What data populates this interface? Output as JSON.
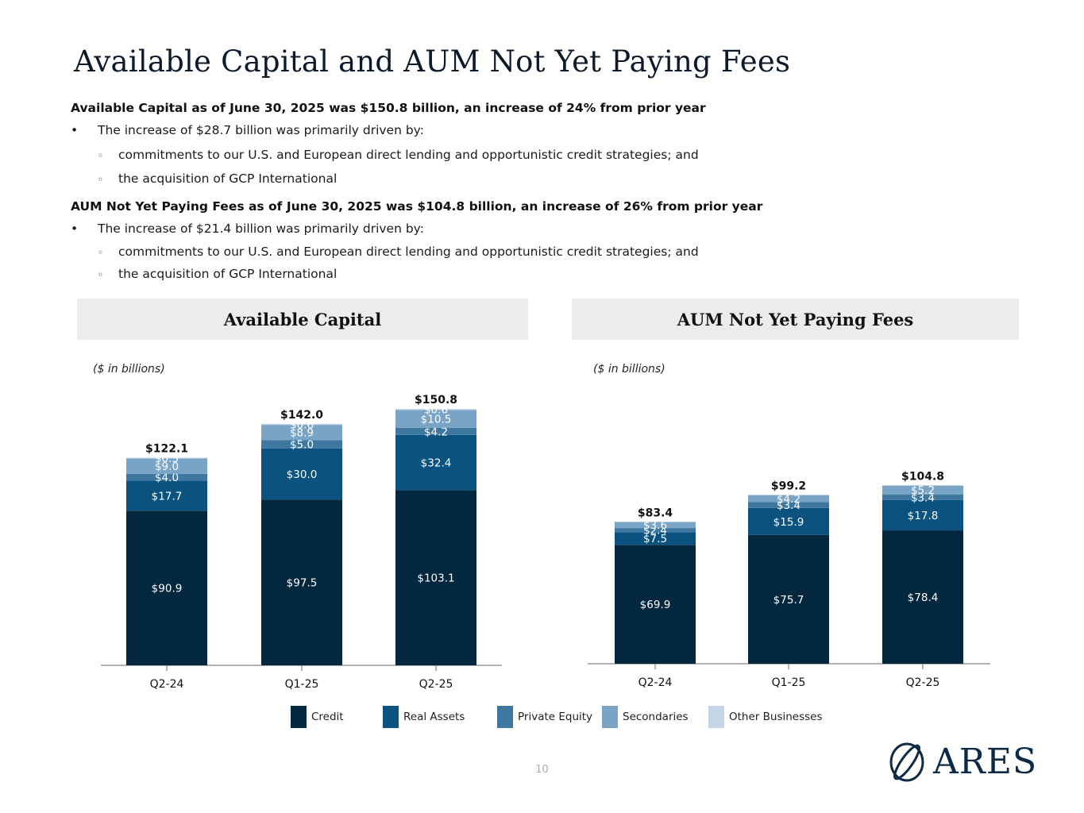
{
  "title": "Available Capital and AUM Not Yet Paying Fees",
  "commentary": {
    "heading1": "Available Capital as of June 30, 2025 was $150.8 billion, an increase of 24% from prior year",
    "bullet1": "The increase of $28.7 billion was primarily driven by:",
    "bullet1_subs": [
      "commitments to our U.S. and European direct lending and opportunistic credit strategies; and",
      "the acquisition of GCP International"
    ],
    "heading2": "AUM Not Yet Paying Fees as of June 30, 2025 was $104.8 billion, an increase of 26% from prior year",
    "bullet2": "The increase of $21.4 billion was primarily driven by:",
    "bullet2_subs": [
      "commitments to our U.S. and European direct lending and opportunistic credit strategies;  and",
      "the acquisition of GCP International"
    ],
    "bullet_marker": "•",
    "sub_marker": "◦"
  },
  "panels": {
    "left_title": "Available Capital",
    "right_title": "AUM Not Yet Paying Fees",
    "units": "($ in billions)"
  },
  "series_colors": {
    "Credit": "#03273f",
    "Real Assets": "#0a5381",
    "Private Equity": "#3e78a1",
    "Secondaries": "#7aa4c6",
    "Other Businesses": "#c4d5e5"
  },
  "chart_data": [
    {
      "type": "bar",
      "stacked": true,
      "title": "Available Capital",
      "ylabel": "($ in billions)",
      "categories": [
        "Q2-24",
        "Q1-25",
        "Q2-25"
      ],
      "series": [
        {
          "name": "Credit",
          "values": [
            90.9,
            97.5,
            103.1
          ],
          "labels": [
            "$90.9",
            "$97.5",
            "$103.1"
          ]
        },
        {
          "name": "Real Assets",
          "values": [
            17.7,
            30.0,
            32.4
          ],
          "labels": [
            "$17.7",
            "$30.0",
            "$32.4"
          ]
        },
        {
          "name": "Private Equity",
          "values": [
            4.0,
            5.0,
            4.2
          ],
          "labels": [
            "$4.0",
            "$5.0",
            "$4.2"
          ]
        },
        {
          "name": "Secondaries",
          "values": [
            9.0,
            8.9,
            10.5
          ],
          "labels": [
            "$9.0",
            "$8.9",
            "$10.5"
          ]
        },
        {
          "name": "Other Businesses",
          "values": [
            0.5,
            0.6,
            0.6
          ],
          "labels": [
            "$0.5",
            "$0.6",
            "$0.6"
          ]
        }
      ],
      "totals": [
        122.1,
        142.0,
        150.8
      ],
      "total_labels": [
        "$122.1",
        "$142.0",
        "$150.8"
      ],
      "ylim": [
        0,
        150.8
      ]
    },
    {
      "type": "bar",
      "stacked": true,
      "title": "AUM Not Yet Paying Fees",
      "ylabel": "($ in billions)",
      "categories": [
        "Q2-24",
        "Q1-25",
        "Q2-25"
      ],
      "series": [
        {
          "name": "Credit",
          "values": [
            69.9,
            75.7,
            78.4
          ],
          "labels": [
            "$69.9",
            "$75.7",
            "$78.4"
          ]
        },
        {
          "name": "Real Assets",
          "values": [
            7.5,
            15.9,
            17.8
          ],
          "labels": [
            "$7.5",
            "$15.9",
            "$17.8"
          ]
        },
        {
          "name": "Private Equity",
          "values": [
            2.4,
            3.4,
            3.4
          ],
          "labels": [
            "$2.4",
            "$3.4",
            "$3.4"
          ]
        },
        {
          "name": "Secondaries",
          "values": [
            3.6,
            4.2,
            5.2
          ],
          "labels": [
            "$3.6",
            "$4.2",
            "$5.2"
          ]
        }
      ],
      "totals": [
        83.4,
        99.2,
        104.8
      ],
      "total_labels": [
        "$83.4",
        "$99.2",
        "$104.8"
      ],
      "ylim": [
        0,
        150.8
      ]
    }
  ],
  "legend": [
    "Credit",
    "Real Assets",
    "Private Equity",
    "Secondaries",
    "Other Businesses"
  ],
  "page_number": "10",
  "logo_text": "ARES"
}
